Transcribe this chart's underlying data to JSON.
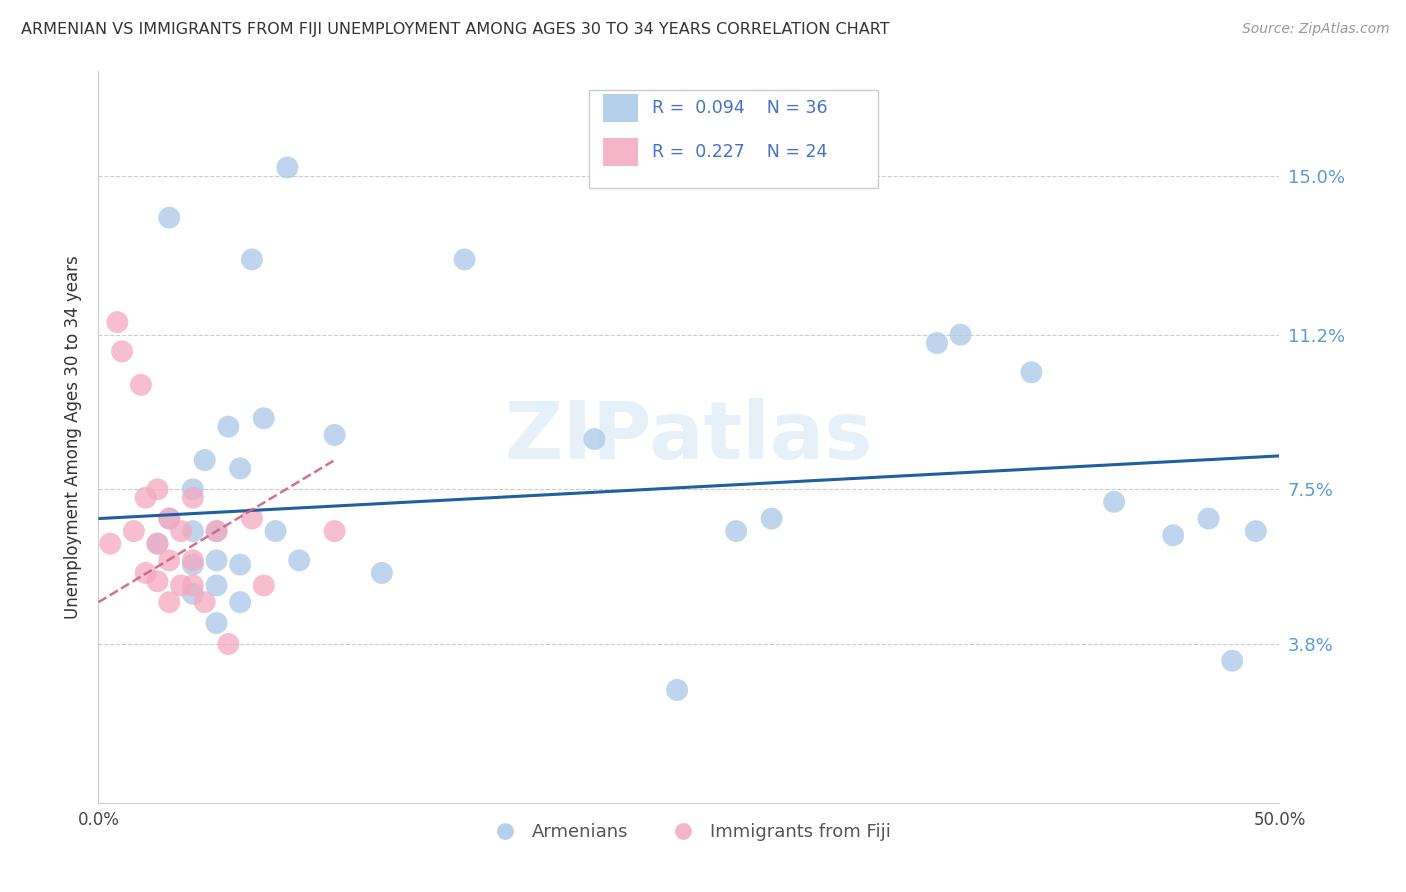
{
  "title": "ARMENIAN VS IMMIGRANTS FROM FIJI UNEMPLOYMENT AMONG AGES 30 TO 34 YEARS CORRELATION CHART",
  "source": "Source: ZipAtlas.com",
  "ylabel": "Unemployment Among Ages 30 to 34 years",
  "xlim": [
    0.0,
    0.5
  ],
  "ylim": [
    0.0,
    0.175
  ],
  "yticks": [
    0.038,
    0.075,
    0.112,
    0.15
  ],
  "ytick_labels": [
    "3.8%",
    "7.5%",
    "11.2%",
    "15.0%"
  ],
  "xticks": [
    0.0,
    0.1,
    0.2,
    0.3,
    0.4,
    0.5
  ],
  "xtick_labels": [
    "0.0%",
    "",
    "",
    "",
    "",
    "50.0%"
  ],
  "blue_R": 0.094,
  "blue_N": 36,
  "pink_R": 0.227,
  "pink_N": 24,
  "blue_color": "#a8c8e8",
  "pink_color": "#f4a8c0",
  "trend_blue": "#2060a0",
  "trend_pink": "#d06080",
  "watermark": "ZIPatlas",
  "blue_label": "Armenians",
  "pink_label": "Immigrants from Fiji",
  "legend_text_color": "#4472c4",
  "blue_dots_x": [
    0.025,
    0.03,
    0.03,
    0.04,
    0.04,
    0.04,
    0.04,
    0.045,
    0.05,
    0.05,
    0.05,
    0.05,
    0.055,
    0.06,
    0.06,
    0.06,
    0.065,
    0.07,
    0.075,
    0.08,
    0.085,
    0.1,
    0.12,
    0.155,
    0.21,
    0.245,
    0.27,
    0.285,
    0.355,
    0.365,
    0.395,
    0.43,
    0.455,
    0.47,
    0.48,
    0.49
  ],
  "blue_dots_y": [
    0.062,
    0.068,
    0.14,
    0.05,
    0.057,
    0.065,
    0.075,
    0.082,
    0.043,
    0.052,
    0.058,
    0.065,
    0.09,
    0.048,
    0.057,
    0.08,
    0.13,
    0.092,
    0.065,
    0.152,
    0.058,
    0.088,
    0.055,
    0.13,
    0.087,
    0.027,
    0.065,
    0.068,
    0.11,
    0.112,
    0.103,
    0.072,
    0.064,
    0.068,
    0.034,
    0.065
  ],
  "pink_dots_x": [
    0.005,
    0.008,
    0.01,
    0.015,
    0.018,
    0.02,
    0.02,
    0.025,
    0.025,
    0.025,
    0.03,
    0.03,
    0.03,
    0.035,
    0.035,
    0.04,
    0.04,
    0.04,
    0.045,
    0.05,
    0.055,
    0.065,
    0.07,
    0.1
  ],
  "pink_dots_y": [
    0.062,
    0.115,
    0.108,
    0.065,
    0.1,
    0.055,
    0.073,
    0.053,
    0.062,
    0.075,
    0.048,
    0.058,
    0.068,
    0.052,
    0.065,
    0.052,
    0.058,
    0.073,
    0.048,
    0.065,
    0.038,
    0.068,
    0.052,
    0.065
  ],
  "blue_trend_x": [
    0.0,
    0.5
  ],
  "blue_trend_y_start": 0.068,
  "blue_trend_y_end": 0.083,
  "pink_trend_x": [
    0.0,
    0.1
  ],
  "pink_trend_y_start": 0.048,
  "pink_trend_y_end": 0.082
}
